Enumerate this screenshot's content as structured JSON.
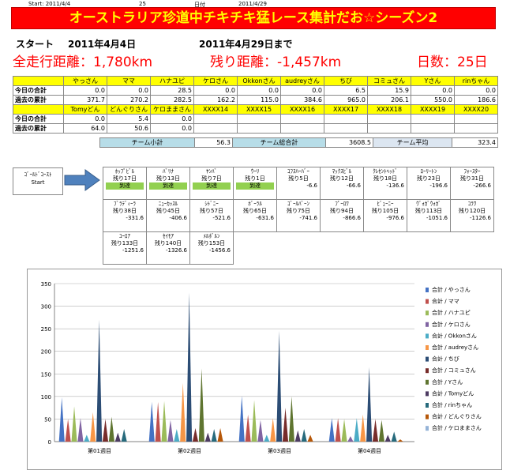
{
  "topline": {
    "start_label": "Start:",
    "start_date": "2011/4/4",
    "day_num": "25",
    "date_label": "日付",
    "date": "2011/4/29"
  },
  "banner": "オーストラリア珍道中チキチキ猛レース集計だお☆シーズン2",
  "period": {
    "start_label": "スタート",
    "start_date": "2011年4月4日",
    "end_text": "2011年4月29日まで"
  },
  "totals": {
    "distance_label": "全走行距離：",
    "distance": "1,780km",
    "remain_label": "残り距離：",
    "remain": "-1,457km",
    "days_label": "日数：",
    "days": "25日"
  },
  "table1": {
    "names": [
      "やっさん",
      "ママ",
      "ハナユピ",
      "ケロさん",
      "Okkonさん",
      "audreyさん",
      "ちび",
      "コミュさん",
      "Yさん",
      "rinちゃん"
    ],
    "rows": [
      {
        "label": "今日の合計",
        "values": [
          "0.0",
          "0.0",
          "28.5",
          "0.0",
          "0.0",
          "0.0",
          "6.5",
          "15.9",
          "0.0",
          "0.0"
        ]
      },
      {
        "label": "過去の累計",
        "values": [
          "371.7",
          "270.2",
          "282.5",
          "162.2",
          "115.0",
          "384.6",
          "965.0",
          "206.1",
          "550.0",
          "186.6"
        ]
      }
    ]
  },
  "table2": {
    "names": [
      "Tomyどん",
      "どんぐりさん",
      "ケロままさん",
      "XXXX14",
      "XXXX15",
      "XXXX16",
      "XXXX17",
      "XXXX18",
      "XXXX19",
      "XXXX20"
    ],
    "rows": [
      {
        "label": "今日の合計",
        "values": [
          "0.0",
          "5.4",
          "0.0",
          "",
          "",
          "",
          "",
          "",
          "",
          ""
        ]
      },
      {
        "label": "過去の累計",
        "values": [
          "64.0",
          "50.6",
          "0.0",
          "",
          "",
          "",
          "",
          "",
          "",
          ""
        ]
      }
    ]
  },
  "summary": {
    "team_sub_label": "チーム小計",
    "team_sub": "56.3",
    "team_total_label": "チーム総合計",
    "team_total": "3608.5",
    "team_avg_label": "チーム平均",
    "team_avg": "323.4"
  },
  "start_box": {
    "line1": "ｺﾞｰﾙﾄﾞｺｰｽﾄ",
    "line2": "Start"
  },
  "course": [
    [
      {
        "name": "ﾎｯﾌﾟﾋﾞﾙ",
        "remain": "残り17日",
        "status": "到達"
      },
      {
        "name": "ﾊﾞﾘﾅ",
        "remain": "残り13日",
        "status": "到達"
      },
      {
        "name": "ﾔﾝﾊﾞ",
        "remain": "残り7日",
        "status": "到達"
      },
      {
        "name": "ｳｰﾘ",
        "remain": "残り1日",
        "status": "到達"
      },
      {
        "name": "ｺﾌｽﾊｰﾊﾞｰ",
        "remain": "残り5日",
        "value": "-6.6"
      },
      {
        "name": "ﾏｯｸｽﾋﾞﾙ",
        "remain": "残り12日",
        "value": "-66.6"
      },
      {
        "name": "ｸﾚｾﾝﾄﾍｯﾄﾞ",
        "remain": "残り18日",
        "value": "-136.6"
      },
      {
        "name": "ﾛｰﾘｰﾄﾝ",
        "remain": "残り23日",
        "value": "-196.6"
      },
      {
        "name": "ﾌｫｰｽﾀｰ",
        "remain": "残り31日",
        "value": "-266.6"
      }
    ],
    [
      {
        "name": "ﾌﾞﾗﾃﾞｨｰﾗ",
        "remain": "残り38日",
        "value": "-331.6"
      },
      {
        "name": "ﾆｭｰｶｯｽﾙ",
        "remain": "残り45日",
        "value": "-406.6"
      },
      {
        "name": "ｼﾄﾞﾆｰ",
        "remain": "残り57日",
        "value": "-521.6"
      },
      {
        "name": "ﾎﾞｰﾗﾙ",
        "remain": "残り65日",
        "value": "-631.6"
      },
      {
        "name": "ｺﾞｰﾙﾊﾞｰﾝ",
        "remain": "残り75日",
        "value": "-741.6"
      },
      {
        "name": "ﾌﾟｰﾛﾜ",
        "remain": "残り94日",
        "value": "-866.6"
      },
      {
        "name": "ﾋﾞｭｰﾆｰ",
        "remain": "残り105日",
        "value": "-976.6"
      },
      {
        "name": "ｳﾞｫｶﾞｳｫｶﾞ",
        "remain": "残り113日",
        "value": "-1051.6"
      },
      {
        "name": "ｺﾗﾜ",
        "remain": "残り120日",
        "value": "-1126.6"
      }
    ],
    [
      {
        "name": "ﾕｰﾛｱ",
        "remain": "残り133日",
        "value": "-1251.6"
      },
      {
        "name": "ｾｲﾓｱ",
        "remain": "残り140日",
        "value": "-1326.6"
      },
      {
        "name": "ﾒﾙﾎﾞﾙﾝ",
        "remain": "残り153日",
        "value": "-1456.6"
      }
    ]
  ],
  "chart_data": {
    "type": "bar",
    "categories": [
      "第01週目",
      "第02週目",
      "第03週目",
      "第04週目"
    ],
    "ylim": [
      0,
      350
    ],
    "yticks": [
      0,
      50,
      100,
      150,
      200,
      250,
      300,
      350
    ],
    "grid": true,
    "legend_position": "right",
    "series": [
      {
        "name": "合計 / やっさん",
        "color": "#4472c4",
        "values": [
          98,
          88,
          102,
          52
        ]
      },
      {
        "name": "合計 / ママ",
        "color": "#c0504d",
        "values": [
          50,
          88,
          60,
          52
        ]
      },
      {
        "name": "合計 / ハナユピ",
        "color": "#9bbb59",
        "values": [
          78,
          90,
          92,
          50
        ]
      },
      {
        "name": "合計 / ケロさん",
        "color": "#8064a2",
        "values": [
          52,
          48,
          48,
          12
        ]
      },
      {
        "name": "合計 / Okkonさん",
        "color": "#4bacc6",
        "values": [
          15,
          28,
          15,
          52
        ]
      },
      {
        "name": "合計 / audreyさん",
        "color": "#f79646",
        "values": [
          65,
          130,
          52,
          60
        ]
      },
      {
        "name": "合計 / ちび",
        "color": "#2c4d75",
        "values": [
          270,
          330,
          245,
          165
        ]
      },
      {
        "name": "合計 / コミュさん",
        "color": "#772c2a",
        "values": [
          50,
          30,
          75,
          50
        ]
      },
      {
        "name": "合計 / Yさん",
        "color": "#5f7530",
        "values": [
          55,
          162,
          100,
          48
        ]
      },
      {
        "name": "合計 / Tomyどん",
        "color": "#4d3b62",
        "values": [
          20,
          20,
          25,
          15
        ]
      },
      {
        "name": "合計 / rinちゃん",
        "color": "#276a7c",
        "values": [
          28,
          28,
          28,
          22
        ]
      },
      {
        "name": "合計 / どんぐりさん",
        "color": "#b65708",
        "values": [
          0,
          30,
          15,
          5
        ]
      },
      {
        "name": "合計 / ケロままさん",
        "color": "#95b3d7",
        "values": [
          0,
          0,
          0,
          0
        ]
      }
    ]
  }
}
